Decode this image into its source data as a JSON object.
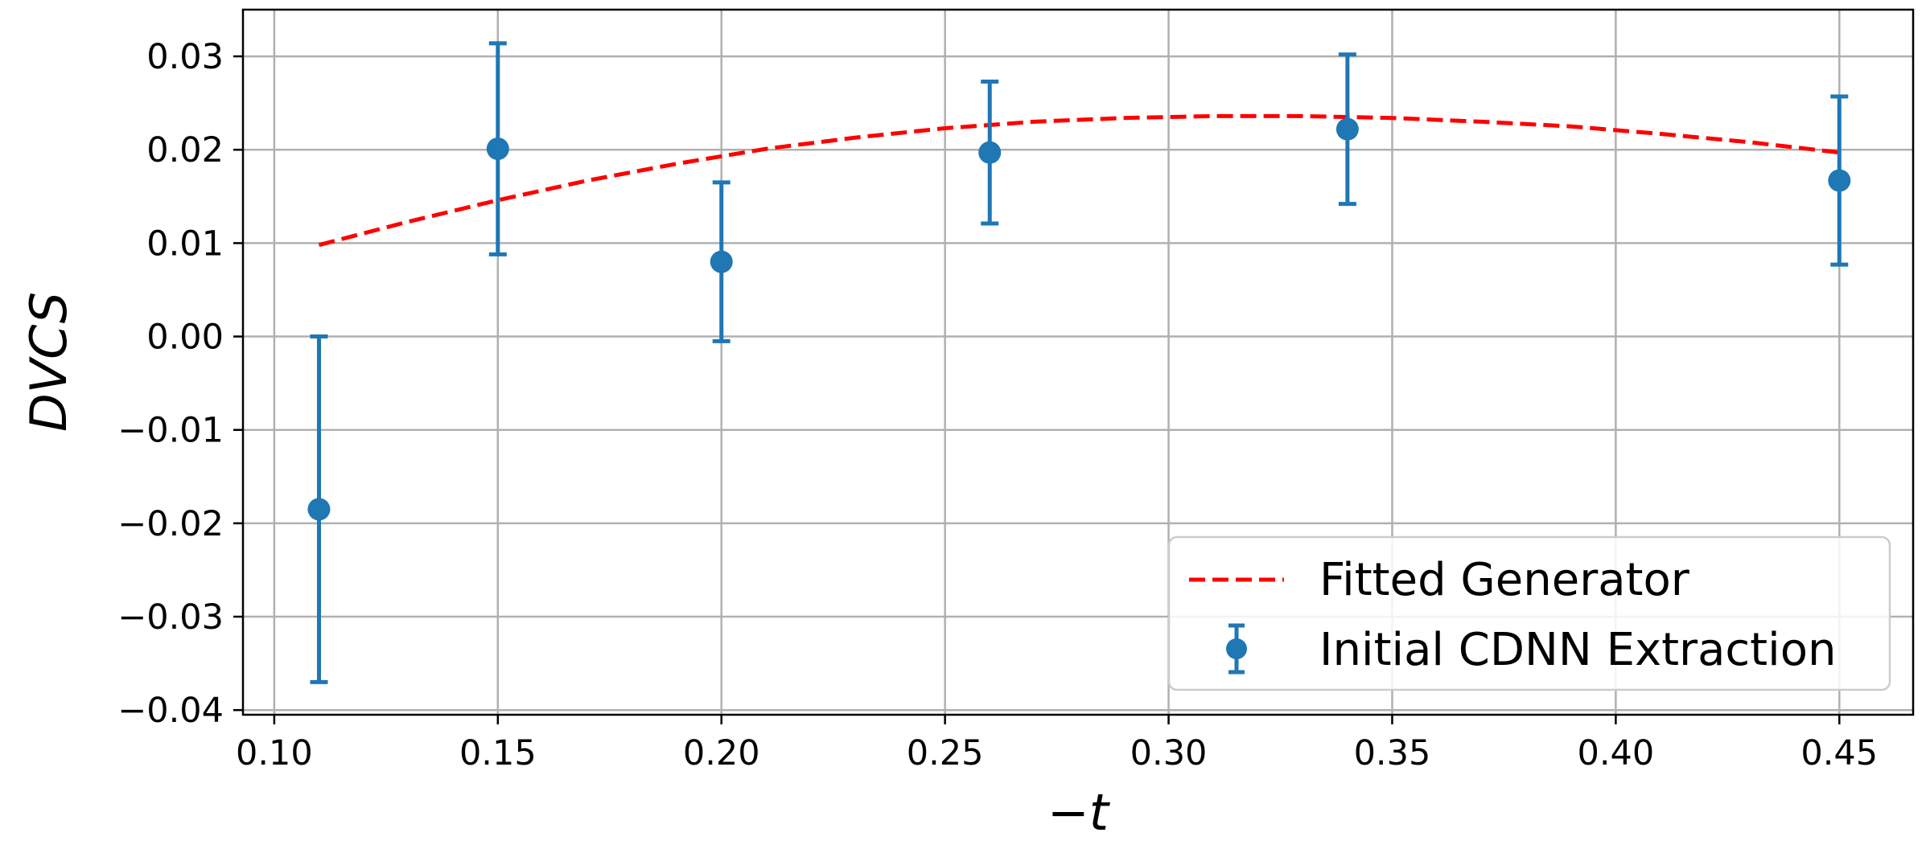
{
  "chart_data": {
    "type": "scatter",
    "title": "",
    "xlabel": "−t",
    "ylabel": "DVCS",
    "xlim": [
      0.093,
      0.4665
    ],
    "ylim": [
      -0.0405,
      0.035
    ],
    "x_ticks": [
      0.1,
      0.15,
      0.2,
      0.25,
      0.3,
      0.35,
      0.4,
      0.45
    ],
    "x_tick_labels": [
      "0.10",
      "0.15",
      "0.20",
      "0.25",
      "0.30",
      "0.35",
      "0.40",
      "0.45"
    ],
    "y_ticks": [
      -0.04,
      -0.03,
      -0.02,
      -0.01,
      0.0,
      0.01,
      0.02,
      0.03
    ],
    "y_tick_labels": [
      "−0.04",
      "−0.03",
      "−0.02",
      "−0.01",
      "0.00",
      "0.01",
      "0.02",
      "0.03"
    ],
    "grid": true,
    "legend_position": "lower-right",
    "series": [
      {
        "name": "Fitted Generator",
        "kind": "line",
        "style": "dashed",
        "color": "#ff0000",
        "x": [
          0.11,
          0.13,
          0.15,
          0.17,
          0.19,
          0.21,
          0.23,
          0.25,
          0.27,
          0.29,
          0.31,
          0.33,
          0.35,
          0.37,
          0.39,
          0.41,
          0.43,
          0.45
        ],
        "y": [
          0.0098,
          0.0123,
          0.0146,
          0.0167,
          0.0185,
          0.0201,
          0.0213,
          0.0223,
          0.023,
          0.0234,
          0.0236,
          0.0236,
          0.0234,
          0.023,
          0.0225,
          0.0217,
          0.0208,
          0.0197
        ]
      },
      {
        "name": "Initial CDNN Extraction",
        "kind": "errorbar",
        "color": "#1f77b4",
        "x": [
          0.11,
          0.15,
          0.2,
          0.26,
          0.34,
          0.45
        ],
        "y": [
          -0.0185,
          0.0201,
          0.008,
          0.0197,
          0.0222,
          0.0167
        ],
        "yerr": [
          0.0185,
          0.0113,
          0.0085,
          0.0076,
          0.008,
          0.009
        ]
      }
    ]
  }
}
